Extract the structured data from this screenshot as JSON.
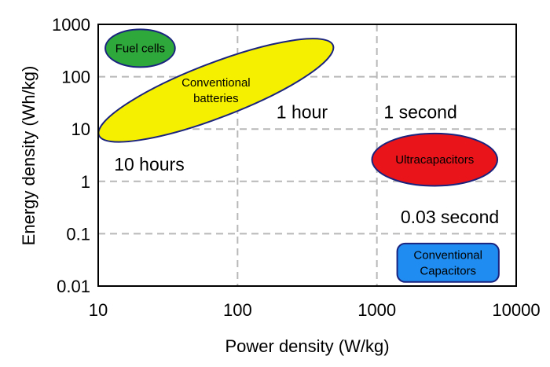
{
  "chart_data": {
    "type": "scatter",
    "xscale": "log",
    "yscale": "log",
    "xlabel": "Power density (W/kg)",
    "ylabel": "Energy density (Wh/kg)",
    "xlim": [
      10,
      10000
    ],
    "ylim": [
      0.01,
      1000
    ],
    "xticks": [
      {
        "value": 10,
        "label": "10"
      },
      {
        "value": 100,
        "label": "100"
      },
      {
        "value": 1000,
        "label": "1000"
      },
      {
        "value": 10000,
        "label": "10000"
      }
    ],
    "yticks": [
      {
        "value": 0.01,
        "label": "0.01"
      },
      {
        "value": 0.1,
        "label": "0.1"
      },
      {
        "value": 1,
        "label": "1"
      },
      {
        "value": 10,
        "label": "10"
      },
      {
        "value": 100,
        "label": "100"
      },
      {
        "value": 1000,
        "label": "1000"
      }
    ],
    "grid": true,
    "regions": [
      {
        "key": "fuel-cells",
        "label": [
          "Fuel cells"
        ],
        "color": "#2ea83a",
        "shape": "ellipse",
        "cx": 20,
        "cy": 350,
        "x_half_decades": 0.25,
        "y_half_decades": 0.36,
        "rotation": 0
      },
      {
        "key": "conventional-batteries",
        "label": [
          "Conventional",
          "batteries"
        ],
        "color": "#f5f000",
        "shape": "ellipse",
        "cx": 70,
        "cy": 55,
        "x_half_decades": 0.9,
        "y_half_decades": 0.52,
        "rotation": -21
      },
      {
        "key": "ultracapacitors",
        "label": [
          "Ultracapacitors"
        ],
        "color": "#e8141a",
        "shape": "ellipse",
        "cx": 2600,
        "cy": 2.6,
        "x_half_decades": 0.45,
        "y_half_decades": 0.5,
        "rotation": 0
      },
      {
        "key": "conventional-capacitors",
        "label": [
          "Conventional",
          "Capacitors"
        ],
        "color": "#1e8cf0",
        "shape": "roundrect",
        "x_range": [
          1400,
          7500
        ],
        "y_range": [
          0.012,
          0.065
        ]
      }
    ],
    "annotations": [
      {
        "key": "10-hours",
        "text": "10 hours",
        "x": 13,
        "y": 1.6
      },
      {
        "key": "1-hour",
        "text": "1 hour",
        "x": 190,
        "y": 16
      },
      {
        "key": "1-second",
        "text": "1 second",
        "x": 1120,
        "y": 16
      },
      {
        "key": "0-03-second",
        "text": "0.03 second",
        "x": 1480,
        "y": 0.16
      }
    ],
    "colors": {
      "outline": "#1a237e",
      "grid": "#b8b8b8",
      "frame": "#000000"
    }
  }
}
